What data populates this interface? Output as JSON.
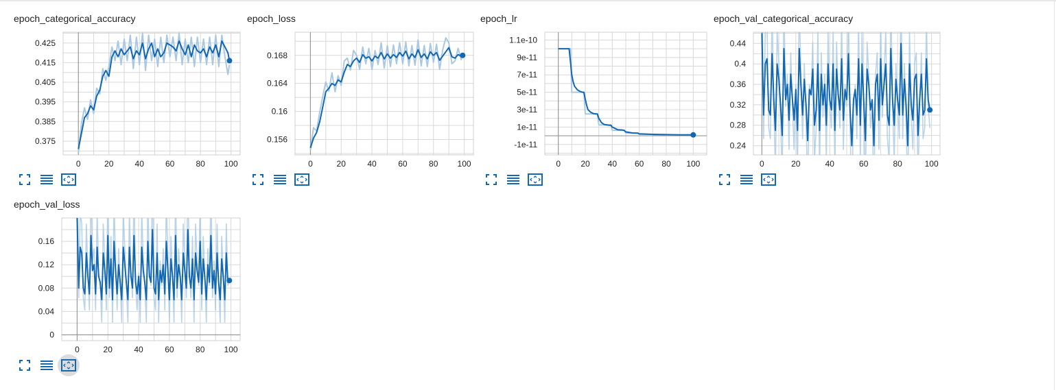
{
  "accent": "#1167b1",
  "smoothed_color": "#1167b1",
  "raw_color": "#a8c8e4",
  "toolbar": {
    "icons": [
      "fullscreen-icon",
      "data-table-icon",
      "fit-domain-icon"
    ]
  },
  "chart_data": [
    {
      "type": "line",
      "title": "epoch_categorical_accuracy",
      "xlabel": "",
      "ylabel": "",
      "xlim": [
        -10,
        106
      ],
      "ylim": [
        0.368,
        0.4305
      ],
      "xticks": [
        "0",
        "20",
        "40",
        "60",
        "80",
        "100"
      ],
      "yticks": [
        "0.375",
        "0.385",
        "0.395",
        "0.405",
        "0.415",
        "0.425"
      ],
      "grid": true,
      "series": [
        {
          "smoothed": true,
          "x": [
            0,
            2,
            4,
            6,
            8,
            10,
            12,
            14,
            16,
            18,
            20,
            22,
            24,
            26,
            28,
            30,
            32,
            34,
            36,
            38,
            40,
            42,
            44,
            46,
            48,
            50,
            52,
            54,
            56,
            58,
            60,
            62,
            64,
            66,
            68,
            70,
            72,
            74,
            76,
            78,
            80,
            82,
            84,
            86,
            88,
            90,
            92,
            94,
            96,
            98,
            99
          ],
          "y": [
            0.371,
            0.379,
            0.387,
            0.389,
            0.393,
            0.391,
            0.398,
            0.401,
            0.408,
            0.411,
            0.408,
            0.418,
            0.421,
            0.418,
            0.422,
            0.419,
            0.421,
            0.423,
            0.417,
            0.421,
            0.419,
            0.425,
            0.417,
            0.422,
            0.425,
            0.418,
            0.422,
            0.418,
            0.42,
            0.425,
            0.424,
            0.423,
            0.421,
            0.426,
            0.422,
            0.419,
            0.424,
            0.418,
            0.424,
            0.421,
            0.42,
            0.422,
            0.418,
            0.423,
            0.42,
            0.424,
            0.418,
            0.426,
            0.423,
            0.42,
            0.416
          ]
        },
        {
          "smoothed": false,
          "x": [
            0,
            2,
            4,
            6,
            8,
            10,
            12,
            14,
            16,
            18,
            20,
            22,
            24,
            26,
            28,
            30,
            32,
            34,
            36,
            38,
            40,
            42,
            44,
            46,
            48,
            50,
            52,
            54,
            56,
            58,
            60,
            62,
            64,
            66,
            68,
            70,
            72,
            74,
            76,
            78,
            80,
            82,
            84,
            86,
            88,
            90,
            92,
            94,
            96,
            98,
            99
          ],
          "y": [
            0.369,
            0.384,
            0.392,
            0.386,
            0.396,
            0.389,
            0.402,
            0.399,
            0.412,
            0.406,
            0.413,
            0.423,
            0.416,
            0.426,
            0.414,
            0.427,
            0.416,
            0.429,
            0.412,
            0.428,
            0.414,
            0.43,
            0.411,
            0.429,
            0.416,
            0.427,
            0.413,
            0.428,
            0.415,
            0.429,
            0.418,
            0.428,
            0.416,
            0.43,
            0.414,
            0.427,
            0.415,
            0.428,
            0.413,
            0.428,
            0.415,
            0.427,
            0.414,
            0.428,
            0.414,
            0.429,
            0.413,
            0.429,
            0.418,
            0.409,
            0.414
          ]
        }
      ]
    },
    {
      "type": "line",
      "title": "epoch_loss",
      "xlabel": "",
      "ylabel": "",
      "xlim": [
        -10,
        106
      ],
      "ylim": [
        0.1538,
        0.1713
      ],
      "xticks": [
        "0",
        "20",
        "40",
        "60",
        "80",
        "100"
      ],
      "yticks": [
        "0.156",
        "0.16",
        "0.164",
        "0.168"
      ],
      "grid": true,
      "series": [
        {
          "smoothed": true,
          "x": [
            0,
            2,
            4,
            6,
            8,
            10,
            12,
            14,
            16,
            18,
            20,
            22,
            24,
            26,
            28,
            30,
            32,
            34,
            36,
            38,
            40,
            42,
            44,
            46,
            48,
            50,
            52,
            54,
            56,
            58,
            60,
            62,
            64,
            66,
            68,
            70,
            72,
            74,
            76,
            78,
            80,
            82,
            84,
            86,
            88,
            90,
            92,
            94,
            96,
            98,
            99
          ],
          "y": [
            0.1548,
            0.1562,
            0.157,
            0.1585,
            0.1606,
            0.1628,
            0.1633,
            0.164,
            0.1637,
            0.1645,
            0.1642,
            0.1656,
            0.1667,
            0.1664,
            0.1672,
            0.1676,
            0.167,
            0.1681,
            0.1676,
            0.1678,
            0.1672,
            0.1679,
            0.1676,
            0.1684,
            0.1675,
            0.1682,
            0.1676,
            0.1681,
            0.1677,
            0.1684,
            0.1679,
            0.1686,
            0.1675,
            0.1682,
            0.1677,
            0.1688,
            0.1677,
            0.1682,
            0.1675,
            0.1685,
            0.168,
            0.1684,
            0.1673,
            0.1679,
            0.1685,
            0.1691,
            0.1678,
            0.1676,
            0.1681,
            0.1679,
            0.168
          ]
        },
        {
          "smoothed": false,
          "x": [
            0,
            2,
            4,
            6,
            8,
            10,
            12,
            14,
            16,
            18,
            20,
            22,
            24,
            26,
            28,
            30,
            32,
            34,
            36,
            38,
            40,
            42,
            44,
            46,
            48,
            50,
            52,
            54,
            56,
            58,
            60,
            62,
            64,
            66,
            68,
            70,
            72,
            74,
            76,
            78,
            80,
            82,
            84,
            86,
            88,
            90,
            92,
            94,
            96,
            98,
            99
          ],
          "y": [
            0.1545,
            0.1577,
            0.1572,
            0.1599,
            0.1621,
            0.1642,
            0.1629,
            0.1655,
            0.1628,
            0.1651,
            0.1637,
            0.1672,
            0.1676,
            0.1659,
            0.1687,
            0.168,
            0.166,
            0.1692,
            0.1668,
            0.169,
            0.166,
            0.1687,
            0.1667,
            0.1698,
            0.1662,
            0.1694,
            0.1664,
            0.1695,
            0.1668,
            0.1698,
            0.1668,
            0.1699,
            0.1665,
            0.1694,
            0.1666,
            0.1702,
            0.1665,
            0.1694,
            0.1664,
            0.1697,
            0.167,
            0.1696,
            0.166,
            0.1688,
            0.1705,
            0.1698,
            0.1668,
            0.1672,
            0.169,
            0.1674,
            0.1681
          ]
        }
      ]
    },
    {
      "type": "line",
      "title": "epoch_lr",
      "xlabel": "",
      "ylabel": "",
      "xlim": [
        -10,
        110
      ],
      "ylim": [
        -2.2e-11,
        1.19e-10
      ],
      "xticks": [
        "0",
        "20",
        "40",
        "60",
        "80",
        "100"
      ],
      "yticks": [
        "-1e-11",
        "1e-11",
        "3e-11",
        "5e-11",
        "7e-11",
        "9e-11",
        "1.1e-10"
      ],
      "grid": true,
      "series": [
        {
          "smoothed": true,
          "x": [
            0,
            8,
            9,
            10,
            11,
            12,
            14,
            16,
            18,
            19,
            20,
            21,
            22,
            24,
            26,
            28,
            29,
            30,
            32,
            34,
            36,
            38,
            39,
            40,
            44,
            48,
            49,
            50,
            55,
            58,
            59,
            60,
            70,
            80,
            90,
            100
          ],
          "y": [
            1e-10,
            1e-10,
            8.5e-11,
            7e-11,
            6.2e-11,
            5.7e-11,
            5.3e-11,
            5.1e-11,
            5e-11,
            5e-11,
            4.2e-11,
            3.5e-11,
            3e-11,
            2.7e-11,
            2.55e-11,
            2.5e-11,
            2.5e-11,
            2e-11,
            1.5e-11,
            1.3e-11,
            1.25e-11,
            1.2e-11,
            1.2e-11,
            1e-11,
            7e-12,
            6.5e-12,
            6e-12,
            4.5e-12,
            3.2e-12,
            3e-12,
            3e-12,
            2.2e-12,
            1.6e-12,
            1.3e-12,
            1.1e-12,
            1e-12
          ]
        },
        {
          "smoothed": false,
          "x": [
            0,
            9,
            10,
            19,
            20,
            29,
            30,
            39,
            40,
            49,
            50,
            59,
            60,
            69,
            70,
            79,
            80,
            89,
            90,
            100
          ],
          "y": [
            1e-10,
            1e-10,
            5e-11,
            5e-11,
            2.5e-11,
            2.5e-11,
            1.25e-11,
            1.25e-11,
            6.25e-12,
            6.25e-12,
            3.1e-12,
            3.1e-12,
            1.6e-12,
            1.6e-12,
            1.2e-12,
            1.2e-12,
            1e-12,
            1e-12,
            1e-12,
            1e-12
          ]
        }
      ]
    },
    {
      "type": "line",
      "title": "epoch_val_categorical_accuracy",
      "xlabel": "",
      "ylabel": "",
      "xlim": [
        -5,
        105
      ],
      "ylim": [
        0.222,
        0.462
      ],
      "xticks": [
        "0",
        "20",
        "40",
        "60",
        "80",
        "100"
      ],
      "yticks": [
        "0.24",
        "0.28",
        "0.32",
        "0.36",
        "0.4",
        "0.44"
      ],
      "grid": true,
      "series": [
        {
          "smoothed": true,
          "x": [
            0,
            1,
            2,
            3,
            4,
            5,
            6,
            7,
            8,
            9,
            10,
            11,
            12,
            13,
            14,
            15,
            16,
            17,
            18,
            19,
            20,
            21,
            22,
            23,
            24,
            25,
            26,
            27,
            28,
            29,
            30,
            31,
            32,
            33,
            34,
            35,
            36,
            37,
            38,
            39,
            40,
            41,
            42,
            43,
            44,
            45,
            46,
            47,
            48,
            49,
            50,
            51,
            52,
            53,
            54,
            55,
            56,
            57,
            58,
            59,
            60,
            61,
            62,
            63,
            64,
            65,
            66,
            67,
            68,
            69,
            70,
            71,
            72,
            73,
            74,
            75,
            76,
            77,
            78,
            79,
            80,
            81,
            82,
            83,
            84,
            85,
            86,
            87,
            88,
            89,
            90,
            91,
            92,
            93,
            94,
            95,
            96,
            97,
            98,
            99
          ],
          "y": [
            0.46,
            0.3,
            0.4,
            0.41,
            0.31,
            0.3,
            0.42,
            0.33,
            0.27,
            0.4,
            0.37,
            0.32,
            0.26,
            0.43,
            0.33,
            0.36,
            0.29,
            0.38,
            0.33,
            0.29,
            0.35,
            0.27,
            0.43,
            0.36,
            0.3,
            0.37,
            0.32,
            0.25,
            0.35,
            0.34,
            0.39,
            0.28,
            0.31,
            0.4,
            0.27,
            0.38,
            0.32,
            0.36,
            0.28,
            0.4,
            0.33,
            0.31,
            0.4,
            0.27,
            0.39,
            0.34,
            0.31,
            0.41,
            0.29,
            0.35,
            0.33,
            0.42,
            0.31,
            0.24,
            0.33,
            0.35,
            0.3,
            0.41,
            0.28,
            0.4,
            0.33,
            0.25,
            0.39,
            0.36,
            0.31,
            0.33,
            0.24,
            0.36,
            0.38,
            0.29,
            0.41,
            0.32,
            0.36,
            0.4,
            0.3,
            0.28,
            0.43,
            0.33,
            0.28,
            0.37,
            0.33,
            0.3,
            0.44,
            0.3,
            0.37,
            0.32,
            0.24,
            0.4,
            0.32,
            0.29,
            0.37,
            0.38,
            0.26,
            0.33,
            0.38,
            0.3,
            0.31,
            0.41,
            0.33,
            0.31
          ]
        }
      ]
    },
    {
      "type": "line",
      "title": "epoch_val_loss",
      "xlabel": "",
      "ylabel": "",
      "xlim": [
        -10,
        106
      ],
      "ylim": [
        -0.01,
        0.2
      ],
      "xticks": [
        "0",
        "20",
        "40",
        "60",
        "80",
        "100"
      ],
      "yticks": [
        "0",
        "0.04",
        "0.08",
        "0.12",
        "0.16"
      ],
      "grid": true,
      "series": [
        {
          "smoothed": true,
          "x": [
            0,
            1,
            2,
            3,
            4,
            5,
            6,
            7,
            8,
            9,
            10,
            11,
            12,
            13,
            14,
            15,
            16,
            17,
            18,
            19,
            20,
            21,
            22,
            23,
            24,
            25,
            26,
            27,
            28,
            29,
            30,
            31,
            32,
            33,
            34,
            35,
            36,
            37,
            38,
            39,
            40,
            41,
            42,
            43,
            44,
            45,
            46,
            47,
            48,
            49,
            50,
            51,
            52,
            53,
            54,
            55,
            56,
            57,
            58,
            59,
            60,
            61,
            62,
            63,
            64,
            65,
            66,
            67,
            68,
            69,
            70,
            71,
            72,
            73,
            74,
            75,
            76,
            77,
            78,
            79,
            80,
            81,
            82,
            83,
            84,
            85,
            86,
            87,
            88,
            89,
            90,
            91,
            92,
            93,
            94,
            95,
            96,
            97,
            98,
            99
          ],
          "y": [
            0.2,
            0.08,
            0.15,
            0.14,
            0.08,
            0.07,
            0.14,
            0.1,
            0.07,
            0.17,
            0.11,
            0.12,
            0.07,
            0.15,
            0.1,
            0.09,
            0.06,
            0.14,
            0.11,
            0.07,
            0.17,
            0.08,
            0.13,
            0.06,
            0.16,
            0.11,
            0.07,
            0.12,
            0.09,
            0.06,
            0.15,
            0.12,
            0.09,
            0.06,
            0.15,
            0.1,
            0.08,
            0.17,
            0.09,
            0.07,
            0.1,
            0.06,
            0.15,
            0.11,
            0.09,
            0.06,
            0.16,
            0.1,
            0.09,
            0.18,
            0.08,
            0.07,
            0.14,
            0.06,
            0.11,
            0.09,
            0.12,
            0.07,
            0.16,
            0.11,
            0.06,
            0.13,
            0.1,
            0.06,
            0.17,
            0.08,
            0.12,
            0.1,
            0.06,
            0.14,
            0.11,
            0.08,
            0.18,
            0.1,
            0.08,
            0.13,
            0.06,
            0.14,
            0.11,
            0.09,
            0.16,
            0.07,
            0.13,
            0.1,
            0.06,
            0.12,
            0.09,
            0.17,
            0.08,
            0.11,
            0.07,
            0.14,
            0.09,
            0.06,
            0.13,
            0.1,
            0.06,
            0.14,
            0.09,
            0.093
          ]
        }
      ]
    }
  ]
}
